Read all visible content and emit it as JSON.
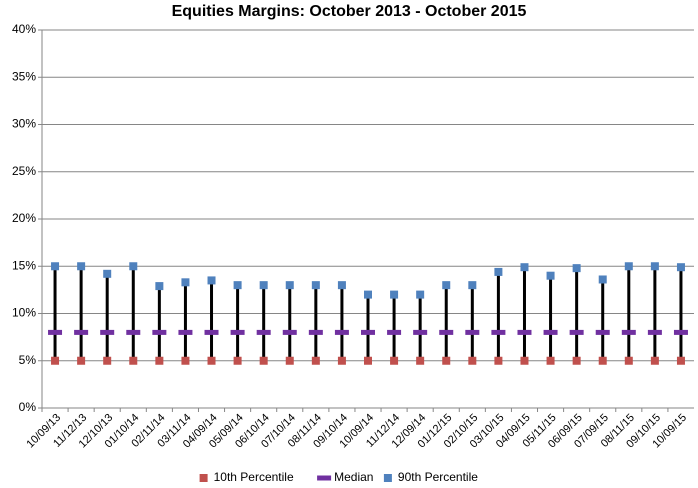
{
  "chart_data": {
    "type": "line",
    "title": "Equities Margins:  October 2013 - October 2015",
    "categories": [
      "10/09/13",
      "11/12/13",
      "12/10/13",
      "01/10/14",
      "02/11/14",
      "03/11/14",
      "04/09/14",
      "05/09/14",
      "06/10/14",
      "07/10/14",
      "08/11/14",
      "09/10/14",
      "10/09/14",
      "11/12/14",
      "12/09/14",
      "01/12/15",
      "02/10/15",
      "03/10/15",
      "04/09/15",
      "05/11/15",
      "06/09/15",
      "07/09/15",
      "08/11/15",
      "09/10/15",
      "10/09/15"
    ],
    "series": [
      {
        "name": "10th Percentile",
        "color": "#c0504d",
        "marker": "square",
        "values": [
          5,
          5,
          5,
          5,
          5,
          5,
          5,
          5,
          5,
          5,
          5,
          5,
          5,
          5,
          5,
          5,
          5,
          5,
          5,
          5,
          5,
          5,
          5,
          5,
          5
        ]
      },
      {
        "name": "Median",
        "color": "#7030a0",
        "marker": "dash",
        "values": [
          8,
          8,
          8,
          8,
          8,
          8,
          8,
          8,
          8,
          8,
          8,
          8,
          8,
          8,
          8,
          8,
          8,
          8,
          8,
          8,
          8,
          8,
          8,
          8,
          8
        ]
      },
      {
        "name": "90th Percentile",
        "color": "#4f81bd",
        "marker": "square",
        "values": [
          15,
          15,
          14.2,
          15,
          12.9,
          13.3,
          13.5,
          13,
          13,
          13,
          13,
          13,
          12,
          12,
          12,
          13,
          13,
          14.4,
          14.9,
          14,
          14.8,
          13.6,
          15,
          15,
          14.9
        ]
      }
    ],
    "hi_lo_lines": true,
    "ylim": [
      0,
      40
    ],
    "yticks": [
      {
        "value": 0,
        "label": "0%"
      },
      {
        "value": 5,
        "label": "5%"
      },
      {
        "value": 10,
        "label": "10%"
      },
      {
        "value": 15,
        "label": "15%"
      },
      {
        "value": 20,
        "label": "20%"
      },
      {
        "value": 25,
        "label": "25%"
      },
      {
        "value": 30,
        "label": "30%"
      },
      {
        "value": 35,
        "label": "35%"
      },
      {
        "value": 40,
        "label": "40%"
      }
    ],
    "grid": true,
    "legend": "bottom"
  }
}
